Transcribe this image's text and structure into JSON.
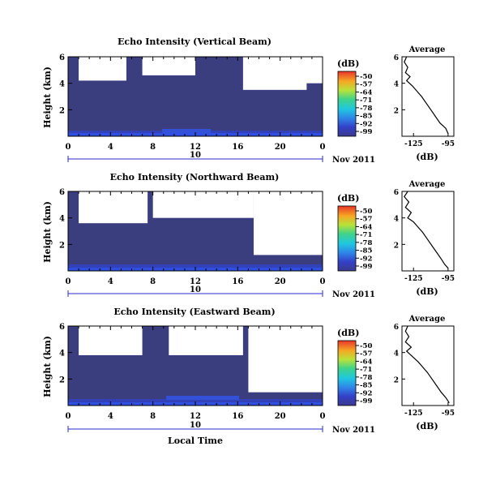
{
  "chart_data": [
    {
      "type": "heatmap",
      "title": "Echo Intensity (Vertical Beam)",
      "ylabel": "Height (km)",
      "xticks": [
        "0",
        "4",
        "8",
        "12",
        "16",
        "20",
        "0"
      ],
      "yticks": [
        "2",
        "4",
        "6"
      ],
      "xlim": [
        0,
        24
      ],
      "ylim": [
        0,
        6
      ],
      "date_label": "10",
      "month_year": "Nov 2011",
      "colorbar": {
        "unit": "(dB)",
        "ticks": [
          "-50",
          "-57",
          "-64",
          "-71",
          "-78",
          "-85",
          "-92",
          "-99"
        ]
      },
      "value_range_db": [
        -99,
        -50
      ],
      "blank_regions": [
        {
          "from_hour": 1.0,
          "to_hour": 5.5,
          "bottom_km": 4.2,
          "top_km": 6.0
        },
        {
          "from_hour": 7.0,
          "to_hour": 12.0,
          "bottom_km": 4.6,
          "top_km": 6.0
        },
        {
          "from_hour": 16.5,
          "to_hour": 22.5,
          "bottom_km": 3.5,
          "top_km": 6.0
        },
        {
          "from_hour": 19.0,
          "to_hour": 24.0,
          "bottom_km": 4.0,
          "top_km": 6.0
        }
      ],
      "profile": {
        "title": "Average",
        "xlabel": "(dB)",
        "xticks": [
          "-125",
          "-95"
        ],
        "xlim": [
          -135,
          -90
        ],
        "yticks": [
          "2",
          "4",
          "6"
        ],
        "ylim": [
          0,
          6
        ],
        "points": [
          [
            -95,
            0.2
          ],
          [
            -97,
            0.6
          ],
          [
            -102,
            1.0
          ],
          [
            -106,
            1.5
          ],
          [
            -110,
            2.0
          ],
          [
            -114,
            2.5
          ],
          [
            -118,
            3.0
          ],
          [
            -122,
            3.4
          ],
          [
            -126,
            3.8
          ],
          [
            -131,
            4.2
          ],
          [
            -128,
            4.5
          ],
          [
            -132,
            4.8
          ],
          [
            -130,
            5.2
          ],
          [
            -133,
            5.6
          ],
          [
            -131,
            6.0
          ]
        ]
      }
    },
    {
      "type": "heatmap",
      "title": "Echo Intensity (Northward Beam)",
      "ylabel": "Height (km)",
      "xticks": [
        "0",
        "4",
        "8",
        "12",
        "16",
        "20",
        "0"
      ],
      "yticks": [
        "2",
        "4",
        "6"
      ],
      "xlim": [
        0,
        24
      ],
      "ylim": [
        0,
        6
      ],
      "date_label": "10",
      "month_year": "Nov 2011",
      "colorbar": {
        "unit": "(dB)",
        "ticks": [
          "-50",
          "-57",
          "-64",
          "-71",
          "-78",
          "-85",
          "-92",
          "-99"
        ]
      },
      "value_range_db": [
        -99,
        -50
      ],
      "blank_regions": [
        {
          "from_hour": 1.0,
          "to_hour": 7.5,
          "bottom_km": 3.6,
          "top_km": 6.0
        },
        {
          "from_hour": 8.0,
          "to_hour": 17.5,
          "bottom_km": 4.0,
          "top_km": 6.0
        },
        {
          "from_hour": 17.5,
          "to_hour": 24.0,
          "bottom_km": 1.2,
          "top_km": 6.0
        }
      ],
      "profile": {
        "title": "Average",
        "xlabel": "(dB)",
        "xticks": [
          "-125",
          "-95"
        ],
        "xlim": [
          -135,
          -90
        ],
        "yticks": [
          "2",
          "4",
          "6"
        ],
        "ylim": [
          0,
          6
        ],
        "points": [
          [
            -95,
            0.2
          ],
          [
            -98,
            0.5
          ],
          [
            -101,
            0.9
          ],
          [
            -105,
            1.4
          ],
          [
            -109,
            1.9
          ],
          [
            -113,
            2.4
          ],
          [
            -117,
            2.9
          ],
          [
            -121,
            3.3
          ],
          [
            -125,
            3.7
          ],
          [
            -130,
            4.0
          ],
          [
            -127,
            4.4
          ],
          [
            -132,
            4.8
          ],
          [
            -129,
            5.2
          ],
          [
            -133,
            5.6
          ],
          [
            -130,
            6.0
          ]
        ]
      }
    },
    {
      "type": "heatmap",
      "title": "Echo Intensity (Eastward Beam)",
      "ylabel": "Height (km)",
      "xticks": [
        "0",
        "4",
        "8",
        "12",
        "16",
        "20",
        "0"
      ],
      "yticks": [
        "2",
        "4",
        "6"
      ],
      "xlim": [
        0,
        24
      ],
      "ylim": [
        0,
        6
      ],
      "date_label": "10",
      "month_year": "Nov 2011",
      "xlabel": "Local Time",
      "colorbar": {
        "unit": "(dB)",
        "ticks": [
          "-50",
          "-57",
          "-64",
          "-71",
          "-78",
          "-85",
          "-92",
          "-99"
        ]
      },
      "value_range_db": [
        -99,
        -50
      ],
      "blank_regions": [
        {
          "from_hour": 1.0,
          "to_hour": 7.0,
          "bottom_km": 3.8,
          "top_km": 6.0
        },
        {
          "from_hour": 9.5,
          "to_hour": 16.5,
          "bottom_km": 3.8,
          "top_km": 6.0
        },
        {
          "from_hour": 17.0,
          "to_hour": 24.0,
          "bottom_km": 1.0,
          "top_km": 6.0
        }
      ],
      "profile": {
        "title": "Average",
        "xlabel": "(dB)",
        "xticks": [
          "-125",
          "-95"
        ],
        "xlim": [
          -135,
          -90
        ],
        "yticks": [
          "2",
          "4",
          "6"
        ],
        "ylim": [
          0,
          6
        ],
        "points": [
          [
            -94,
            0.2
          ],
          [
            -97,
            0.6
          ],
          [
            -101,
            1.0
          ],
          [
            -105,
            1.5
          ],
          [
            -109,
            2.0
          ],
          [
            -113,
            2.5
          ],
          [
            -117,
            2.9
          ],
          [
            -121,
            3.3
          ],
          [
            -126,
            3.7
          ],
          [
            -131,
            4.1
          ],
          [
            -127,
            4.4
          ],
          [
            -132,
            4.8
          ],
          [
            -129,
            5.2
          ],
          [
            -132,
            5.6
          ],
          [
            -130,
            6.0
          ]
        ]
      }
    }
  ]
}
